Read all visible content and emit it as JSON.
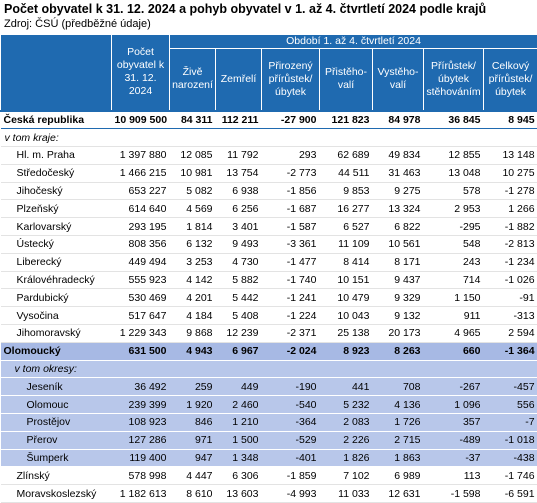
{
  "title": "Počet obyvatel k 31. 12. 2024 a pohyb obyvatel v 1. až 4. čtvrtletí 2024 podle krajů",
  "source": "Zdroj: ČSÚ (předběžné údaje)",
  "headers": {
    "population": "Počet obyvatel k 31. 12. 2024",
    "period": "Období 1. až 4. čtvrtletí 2024",
    "cols": [
      "Živě narození",
      "Zemřelí",
      "Přirozený přírůstek/ úbytek",
      "Přistěho-valí",
      "Vystěho-valí",
      "Přírůstek/ úbytek stěhováním",
      "Celkový přírůstek/ úbytek"
    ]
  },
  "rows": [
    {
      "type": "total",
      "name": "Česká republika",
      "v": [
        "10 909 500",
        "84 311",
        "112 211",
        "-27 900",
        "121 823",
        "84 978",
        "36 845",
        "8 945"
      ]
    },
    {
      "type": "section",
      "name": "v tom kraje:"
    },
    {
      "type": "region",
      "name": "Hl. m. Praha",
      "v": [
        "1 397 880",
        "12 085",
        "11 792",
        "293",
        "62 689",
        "49 834",
        "12 855",
        "13 148"
      ]
    },
    {
      "type": "region",
      "name": "Středočeský",
      "v": [
        "1 466 215",
        "10 981",
        "13 754",
        "-2 773",
        "44 511",
        "31 463",
        "13 048",
        "10 275"
      ]
    },
    {
      "type": "region",
      "name": "Jihočeský",
      "v": [
        "653 227",
        "5 082",
        "6 938",
        "-1 856",
        "9 853",
        "9 275",
        "578",
        "-1 278"
      ]
    },
    {
      "type": "region",
      "name": "Plzeňský",
      "v": [
        "614 640",
        "4 569",
        "6 256",
        "-1 687",
        "16 277",
        "13 324",
        "2 953",
        "1 266"
      ]
    },
    {
      "type": "region",
      "name": "Karlovarský",
      "v": [
        "293 195",
        "1 814",
        "3 401",
        "-1 587",
        "6 527",
        "6 822",
        "-295",
        "-1 882"
      ]
    },
    {
      "type": "region",
      "name": "Ústecký",
      "v": [
        "808 356",
        "6 132",
        "9 493",
        "-3 361",
        "11 109",
        "10 561",
        "548",
        "-2 813"
      ]
    },
    {
      "type": "region",
      "name": "Liberecký",
      "v": [
        "449 494",
        "3 253",
        "4 730",
        "-1 477",
        "8 414",
        "8 171",
        "243",
        "-1 234"
      ]
    },
    {
      "type": "region",
      "name": "Královéhradecký",
      "v": [
        "555 923",
        "4 142",
        "5 882",
        "-1 740",
        "10 151",
        "9 437",
        "714",
        "-1 026"
      ]
    },
    {
      "type": "region",
      "name": "Pardubický",
      "v": [
        "530 469",
        "4 201",
        "5 442",
        "-1 241",
        "10 479",
        "9 329",
        "1 150",
        "-91"
      ]
    },
    {
      "type": "region",
      "name": "Vysočina",
      "v": [
        "517 647",
        "4 184",
        "5 408",
        "-1 224",
        "10 043",
        "9 132",
        "911",
        "-313"
      ]
    },
    {
      "type": "region",
      "name": "Jihomoravský",
      "v": [
        "1 229 343",
        "9 868",
        "12 239",
        "-2 371",
        "25 138",
        "20 173",
        "4 965",
        "2 594"
      ]
    },
    {
      "type": "hlregion",
      "name": "Olomoucký",
      "v": [
        "631 500",
        "4 943",
        "6 967",
        "-2 024",
        "8 923",
        "8 263",
        "660",
        "-1 364"
      ]
    },
    {
      "type": "hlsection",
      "name": "v tom okresy:"
    },
    {
      "type": "district",
      "name": "Jeseník",
      "v": [
        "36 492",
        "259",
        "449",
        "-190",
        "441",
        "708",
        "-267",
        "-457"
      ]
    },
    {
      "type": "district",
      "name": "Olomouc",
      "v": [
        "239 399",
        "1 920",
        "2 460",
        "-540",
        "5 232",
        "4 136",
        "1 096",
        "556"
      ]
    },
    {
      "type": "district",
      "name": "Prostějov",
      "v": [
        "108 923",
        "846",
        "1 210",
        "-364",
        "2 083",
        "1 726",
        "357",
        "-7"
      ]
    },
    {
      "type": "district",
      "name": "Přerov",
      "v": [
        "127 286",
        "971",
        "1 500",
        "-529",
        "2 226",
        "2 715",
        "-489",
        "-1 018"
      ]
    },
    {
      "type": "district",
      "name": "Šumperk",
      "v": [
        "119 400",
        "947",
        "1 348",
        "-401",
        "1 826",
        "1 863",
        "-37",
        "-438"
      ]
    },
    {
      "type": "region",
      "name": "Zlínský",
      "v": [
        "578 998",
        "4 447",
        "6 306",
        "-1 859",
        "7 102",
        "6 989",
        "113",
        "-1 746"
      ]
    },
    {
      "type": "region",
      "name": "Moravskoslezský",
      "v": [
        "1 182 613",
        "8 610",
        "13 603",
        "-4 993",
        "11 033",
        "12 631",
        "-1 598",
        "-6 591"
      ]
    }
  ]
}
